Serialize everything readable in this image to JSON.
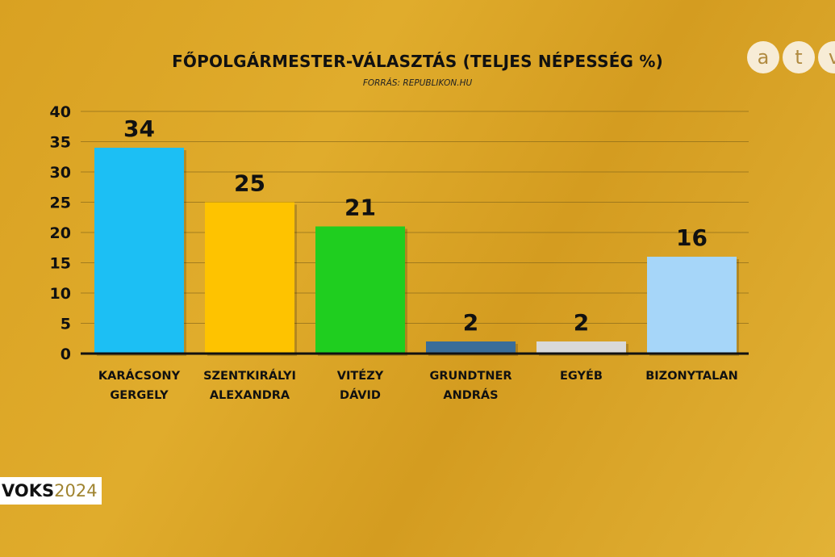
{
  "chart_data": {
    "type": "bar",
    "title": "FŐPOLGÁRMESTER-VÁLASZTÁS (TELJES NÉPESSÉG %)",
    "subtitle": "FORRÁS: REPUBLIKON.HU",
    "categories": [
      [
        "KARÁCSONY",
        "GERGELY"
      ],
      [
        "SZENTKIRÁLYI",
        "ALEXANDRA"
      ],
      [
        "VITÉZY",
        "DÁVID"
      ],
      [
        "GRUNDTNER",
        "ANDRÁS"
      ],
      [
        "EGYÉB"
      ],
      [
        "BIZONYTALAN"
      ]
    ],
    "values": [
      34,
      25,
      21,
      2,
      2,
      16
    ],
    "colors": [
      "#1cbff4",
      "#fec300",
      "#1fce1f",
      "#3a6d99",
      "#d9d9d9",
      "#a6d6f9"
    ],
    "ylim": [
      0,
      40
    ],
    "yticks": [
      0,
      5,
      10,
      15,
      20,
      25,
      30,
      35,
      40
    ],
    "grid": true,
    "legend": "none"
  },
  "branding": {
    "channel_logo": [
      "a",
      "t",
      "v"
    ],
    "show_prefix": "VOKS",
    "show_year": "2024"
  }
}
